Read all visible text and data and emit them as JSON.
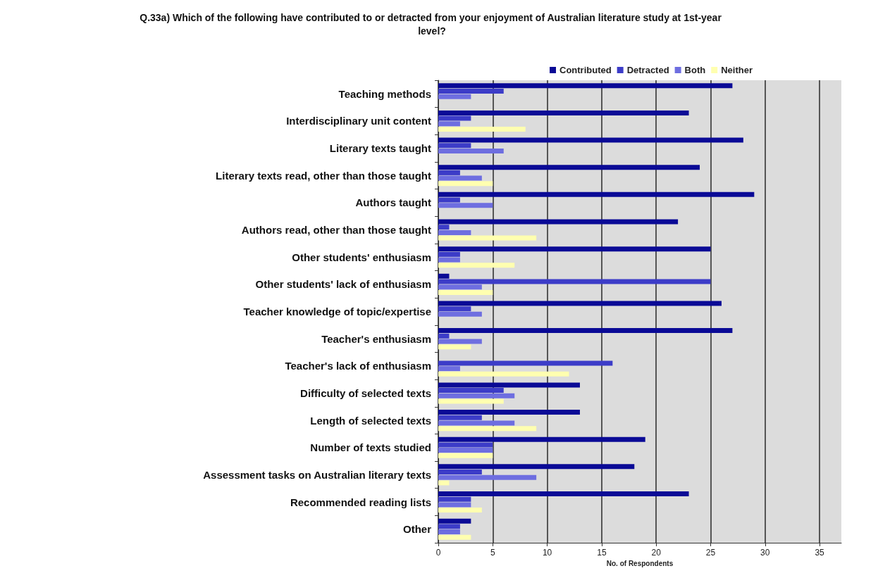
{
  "chart_data": {
    "type": "bar",
    "orientation": "horizontal",
    "title": "Q.33a) Which of the following have contributed to or detracted from your enjoyment of Australian literature study at 1st-year level?",
    "xlabel": "No. of Respondents",
    "categories": [
      "Teaching methods",
      "Interdisciplinary unit content",
      "Literary texts taught",
      "Literary texts read, other than those taught",
      "Authors taught",
      "Authors read, other than those taught",
      "Other students' enthusiasm",
      "Other students' lack of enthusiasm",
      "Teacher knowledge of topic/expertise",
      "Teacher's enthusiasm",
      "Teacher's lack of enthusiasm",
      "Difficulty of selected texts",
      "Length of selected texts",
      "Number of texts studied",
      "Assessment tasks on Australian literary texts",
      "Recommended reading lists",
      "Other"
    ],
    "series": [
      {
        "name": "Contributed",
        "color": "#0a0a96",
        "values": [
          27,
          23,
          28,
          24,
          29,
          22,
          25,
          1,
          26,
          27,
          0,
          13,
          13,
          19,
          18,
          23,
          3
        ]
      },
      {
        "name": "Detracted",
        "color": "#3c3cc8",
        "values": [
          6,
          3,
          3,
          2,
          2,
          1,
          2,
          25,
          3,
          1,
          16,
          6,
          4,
          5,
          4,
          3,
          2
        ]
      },
      {
        "name": "Both",
        "color": "#6e6ee0",
        "values": [
          3,
          2,
          6,
          4,
          5,
          3,
          2,
          4,
          4,
          4,
          2,
          7,
          7,
          5,
          9,
          3,
          2
        ]
      },
      {
        "name": "Neither",
        "color": "#ffffb0",
        "values": [
          0,
          8,
          0,
          5,
          0,
          9,
          7,
          5,
          0,
          3,
          12,
          6,
          9,
          5,
          1,
          4,
          3
        ]
      }
    ],
    "xlim": [
      0,
      37
    ],
    "xticks": [
      0,
      5,
      10,
      15,
      20,
      25,
      30,
      35
    ],
    "grid": "x",
    "legend": "top right"
  }
}
